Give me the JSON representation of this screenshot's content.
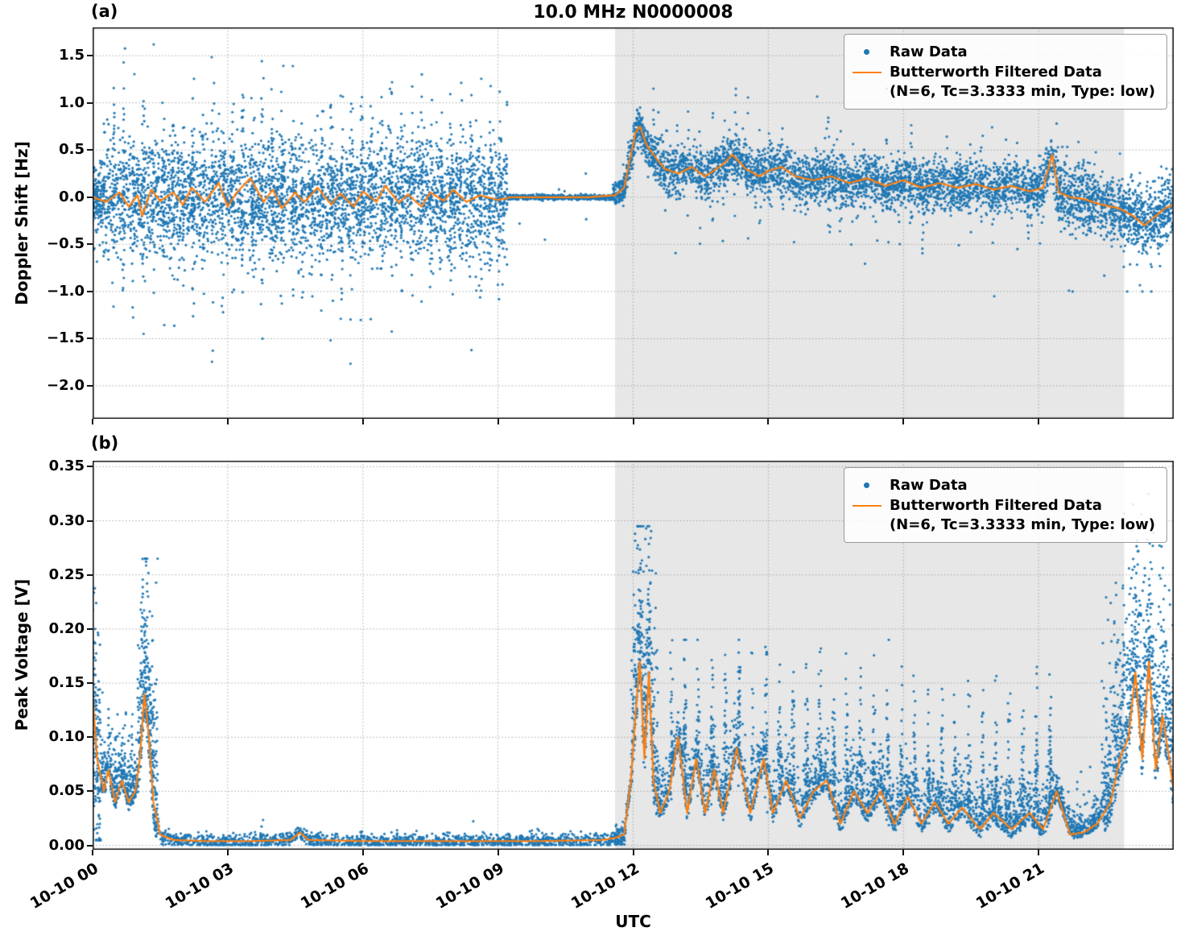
{
  "figure": {
    "panel_a_tag": "(a)",
    "panel_b_tag": "(b)",
    "xlabel": "UTC",
    "colors": {
      "raw": "#1f77b4",
      "filtered": "#ff7f0e",
      "shade": "#e7e7e7",
      "grid": "#9a9a9a",
      "spine": "#1a1a1a"
    },
    "legend": {
      "raw_label": "Raw Data",
      "filtered_label": "Butterworth Filtered Data",
      "filtered_sub": "(N=6, Tc=3.3333 min, Type: low)"
    }
  },
  "chart_data": [
    {
      "type": "scatter",
      "panel": "a",
      "title": "10.0 MHz N0000008",
      "ylabel": "Doppler Shift [Hz]",
      "xlim": [
        0,
        24
      ],
      "ylim": [
        -2.35,
        1.8
      ],
      "grid": true,
      "legend_position": "upper right",
      "shade_span": [
        11.6,
        22.9
      ],
      "yticks": {
        "values": [
          1.5,
          1.0,
          0.5,
          0.0,
          -0.5,
          -1.0,
          -1.5,
          -2.0
        ],
        "labels": [
          "1.5",
          "1.0",
          "0.5",
          "0.0",
          "−0.5",
          "−1.0",
          "−1.5",
          "−2.0"
        ]
      },
      "xticks": {
        "values": [
          0,
          3,
          6,
          9,
          12,
          15,
          18,
          21
        ],
        "labels": [
          "10-10 00",
          "10-10 03",
          "10-10 06",
          "10-10 09",
          "10-10 12",
          "10-10 15",
          "10-10 18",
          "10-10 21"
        ]
      },
      "series": [
        {
          "name": "Raw Data",
          "kind": "scatter",
          "segments": [
            {
              "x0": 0,
              "x1": 0.25,
              "n": 160,
              "mean0": 0,
              "mean1": 0,
              "spread": 0.13,
              "tail_prob": 0.25,
              "tail_scale": 0.3,
              "clamp": [
                -0.95,
                0.6
              ]
            },
            {
              "x0": 0.25,
              "x1": 9.2,
              "n": 4400,
              "mean0": 0,
              "mean1": 0,
              "spread": 0.3,
              "tail_prob": 0.22,
              "tail_scale": 0.5,
              "col_spacing": 0.22,
              "clamp": [
                -2.1,
                1.62
              ]
            },
            {
              "x0": 9.2,
              "x1": 11.55,
              "n": 650,
              "mean0": 0,
              "mean1": 0,
              "spread": 0.013,
              "tail_prob": 0.008,
              "tail_scale": 0.3,
              "clamp": [
                -0.45,
                0.45
              ]
            },
            {
              "x0": 11.55,
              "x1": 11.85,
              "n": 130,
              "follow": true,
              "spread": 0.07,
              "clamp": [
                -0.4,
                0.5
              ]
            },
            {
              "x0": 11.85,
              "x1": 12.45,
              "n": 280,
              "follow": true,
              "spread": 0.09,
              "clamp": [
                -0.3,
                0.95
              ]
            },
            {
              "x0": 12.45,
              "x1": 21.3,
              "n": 3400,
              "follow": true,
              "spread": 0.13,
              "tail_prob": 0.09,
              "tail_scale": 0.32,
              "col_spacing": 0.26,
              "clamp": [
                -1.05,
                1.15
              ]
            },
            {
              "x0": 21.3,
              "x1": 24,
              "n": 1150,
              "follow": true,
              "spread": 0.17,
              "tail_prob": 0.1,
              "tail_scale": 0.3,
              "clamp": [
                -1.0,
                0.85
              ]
            }
          ]
        },
        {
          "name": "Butterworth Filtered Data (N=6, Tc=3.3333 min, Type: low)",
          "kind": "line",
          "x": [
            0,
            0.3,
            0.6,
            0.8,
            1.0,
            1.1,
            1.3,
            1.5,
            1.8,
            2.0,
            2.2,
            2.5,
            2.8,
            3.0,
            3.2,
            3.5,
            3.8,
            4.0,
            4.2,
            4.5,
            4.7,
            5.0,
            5.3,
            5.5,
            5.8,
            6.0,
            6.3,
            6.5,
            6.8,
            7.0,
            7.3,
            7.5,
            7.8,
            8.0,
            8.3,
            8.6,
            9.0,
            9.3,
            10,
            11,
            11.6,
            11.8,
            11.95,
            12.05,
            12.15,
            12.3,
            12.5,
            12.7,
            13.0,
            13.3,
            13.6,
            14.0,
            14.2,
            14.5,
            14.8,
            15.0,
            15.3,
            15.6,
            16.0,
            16.4,
            16.8,
            17.2,
            17.6,
            18.0,
            18.4,
            18.8,
            19.2,
            19.6,
            20.0,
            20.4,
            20.8,
            21.1,
            21.3,
            21.45,
            21.7,
            22.0,
            22.4,
            22.8,
            23.1,
            23.35,
            23.6,
            23.8,
            24
          ],
          "y": [
            0.0,
            -0.05,
            0.05,
            -0.1,
            0.02,
            -0.2,
            0.08,
            -0.04,
            0.05,
            -0.08,
            0.1,
            -0.05,
            0.15,
            -0.1,
            0.05,
            0.2,
            -0.05,
            0.08,
            -0.12,
            0.05,
            -0.05,
            0.1,
            -0.08,
            0.04,
            -0.1,
            0.06,
            -0.05,
            0.12,
            -0.06,
            0.03,
            -0.1,
            0.05,
            -0.04,
            0.08,
            -0.05,
            0.02,
            -0.03,
            0.0,
            0.0,
            0.0,
            0.02,
            0.1,
            0.45,
            0.68,
            0.75,
            0.55,
            0.42,
            0.3,
            0.25,
            0.32,
            0.22,
            0.35,
            0.45,
            0.3,
            0.22,
            0.28,
            0.32,
            0.22,
            0.18,
            0.22,
            0.15,
            0.2,
            0.12,
            0.18,
            0.1,
            0.15,
            0.1,
            0.14,
            0.08,
            0.12,
            0.06,
            0.1,
            0.45,
            0.05,
            0.0,
            -0.02,
            -0.08,
            -0.12,
            -0.2,
            -0.3,
            -0.2,
            -0.12,
            -0.08
          ]
        }
      ]
    },
    {
      "type": "scatter",
      "panel": "b",
      "ylabel": "Peak Voltage [V]",
      "xlabel": "UTC",
      "xlim": [
        0,
        24
      ],
      "ylim": [
        -0.004,
        0.3555
      ],
      "grid": true,
      "legend_position": "upper right",
      "shade_span": [
        11.6,
        22.9
      ],
      "yticks": {
        "values": [
          0.35,
          0.3,
          0.25,
          0.2,
          0.15,
          0.1,
          0.05,
          0.0
        ],
        "labels": [
          "0.35",
          "0.30",
          "0.25",
          "0.20",
          "0.15",
          "0.10",
          "0.05",
          "0.00"
        ]
      },
      "xticks": {
        "values": [
          0,
          3,
          6,
          9,
          12,
          15,
          18,
          21
        ],
        "labels": [
          "10-10 00",
          "10-10 03",
          "10-10 06",
          "10-10 09",
          "10-10 12",
          "10-10 15",
          "10-10 18",
          "10-10 21"
        ]
      },
      "series": [
        {
          "name": "Raw Data",
          "kind": "scatter",
          "segments": [
            {
              "x0": 0,
              "x1": 0.18,
              "n": 150,
              "mean0": 0.12,
              "mean1": 0.06,
              "spread": 0.05,
              "clamp": [
                0.005,
                0.26
              ]
            },
            {
              "x0": 0.18,
              "x1": 1.0,
              "n": 420,
              "follow": true,
              "spread": 0.02,
              "tail_prob": 0.15,
              "tail_scale": 0.035,
              "onesided": true,
              "clamp": [
                0.002,
                0.17
              ]
            },
            {
              "x0": 1.0,
              "x1": 1.45,
              "n": 380,
              "follow": true,
              "spread": 0.05,
              "tail_prob": 0.3,
              "tail_scale": 0.06,
              "onesided": true,
              "clamp": [
                0.002,
                0.265
              ]
            },
            {
              "x0": 1.45,
              "x1": 11.55,
              "n": 1500,
              "follow": true,
              "spread": 0.0035,
              "tail_prob": 0.02,
              "tail_scale": 0.008,
              "clamp": [
                0.0005,
                0.05
              ]
            },
            {
              "x0": 11.55,
              "x1": 11.95,
              "n": 130,
              "follow": true,
              "spread": 0.005,
              "clamp": [
                0.001,
                0.06
              ]
            },
            {
              "x0": 11.95,
              "x1": 12.55,
              "n": 430,
              "follow": true,
              "spread": 0.05,
              "tail_prob": 0.3,
              "tail_scale": 0.07,
              "onesided": true,
              "clamp": [
                0.002,
                0.295
              ]
            },
            {
              "x0": 12.55,
              "x1": 21.4,
              "n": 3600,
              "follow": true,
              "spread": 0.022,
              "tail_prob": 0.25,
              "tail_scale": 0.05,
              "onesided": true,
              "col_spacing": 0.3,
              "clamp": [
                0.002,
                0.19
              ]
            },
            {
              "x0": 21.4,
              "x1": 22.4,
              "n": 330,
              "follow": true,
              "spread": 0.01,
              "tail_prob": 0.1,
              "tail_scale": 0.02,
              "onesided": true,
              "clamp": [
                0.001,
                0.09
              ]
            },
            {
              "x0": 22.4,
              "x1": 24,
              "n": 950,
              "follow": true,
              "spread": 0.045,
              "tail_prob": 0.3,
              "tail_scale": 0.06,
              "onesided": true,
              "clamp": [
                0.002,
                0.34
              ]
            }
          ]
        },
        {
          "name": "Butterworth Filtered Data (N=6, Tc=3.3333 min, Type: low)",
          "kind": "line",
          "x": [
            0,
            0.1,
            0.25,
            0.35,
            0.5,
            0.65,
            0.8,
            0.95,
            1.05,
            1.15,
            1.25,
            1.35,
            1.5,
            1.8,
            2.5,
            3.5,
            4.4,
            4.6,
            4.8,
            6,
            8,
            10,
            11.3,
            11.6,
            11.8,
            11.95,
            12.05,
            12.15,
            12.25,
            12.35,
            12.45,
            12.6,
            12.8,
            13.0,
            13.2,
            13.4,
            13.6,
            13.8,
            14.0,
            14.3,
            14.6,
            14.9,
            15.1,
            15.4,
            15.7,
            16.0,
            16.3,
            16.6,
            16.9,
            17.2,
            17.5,
            17.8,
            18.1,
            18.4,
            18.7,
            19.0,
            19.3,
            19.7,
            20.0,
            20.4,
            20.8,
            21.1,
            21.4,
            21.7,
            22.0,
            22.3,
            22.6,
            22.8,
            23.0,
            23.15,
            23.3,
            23.45,
            23.6,
            23.75,
            23.9,
            24
          ],
          "y": [
            0.14,
            0.08,
            0.05,
            0.07,
            0.04,
            0.06,
            0.04,
            0.05,
            0.08,
            0.14,
            0.1,
            0.04,
            0.01,
            0.005,
            0.004,
            0.004,
            0.005,
            0.012,
            0.005,
            0.004,
            0.004,
            0.004,
            0.005,
            0.007,
            0.01,
            0.06,
            0.12,
            0.17,
            0.08,
            0.16,
            0.06,
            0.03,
            0.05,
            0.1,
            0.03,
            0.08,
            0.03,
            0.07,
            0.03,
            0.09,
            0.03,
            0.08,
            0.03,
            0.06,
            0.025,
            0.05,
            0.06,
            0.02,
            0.05,
            0.03,
            0.05,
            0.02,
            0.045,
            0.02,
            0.04,
            0.02,
            0.035,
            0.015,
            0.03,
            0.015,
            0.03,
            0.015,
            0.05,
            0.01,
            0.012,
            0.02,
            0.04,
            0.08,
            0.1,
            0.16,
            0.08,
            0.17,
            0.07,
            0.12,
            0.08,
            0.05
          ]
        }
      ]
    }
  ]
}
